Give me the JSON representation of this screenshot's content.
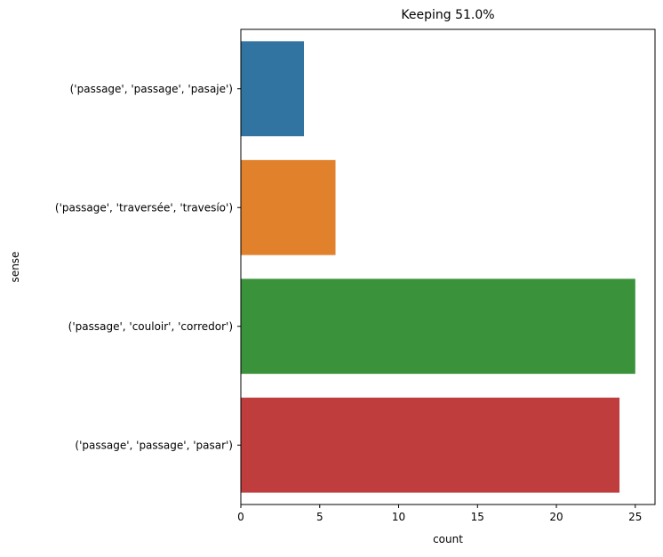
{
  "chart_data": {
    "type": "bar",
    "orientation": "horizontal",
    "title": "Keeping 51.0%",
    "xlabel": "count",
    "ylabel": "sense",
    "categories": [
      "('passage', 'passage', 'pasaje')",
      "('passage', 'traversée', 'travesío')",
      "('passage', 'couloir', 'corredor')",
      "('passage', 'passage', 'pasar')"
    ],
    "values": [
      4,
      6,
      25,
      24
    ],
    "colors": [
      "#3274a1",
      "#e1812c",
      "#3a923a",
      "#c03d3e"
    ],
    "xlim": [
      0,
      26.25
    ],
    "xticks": [
      0,
      5,
      10,
      15,
      20,
      25
    ],
    "grid": false,
    "legend": "none"
  }
}
